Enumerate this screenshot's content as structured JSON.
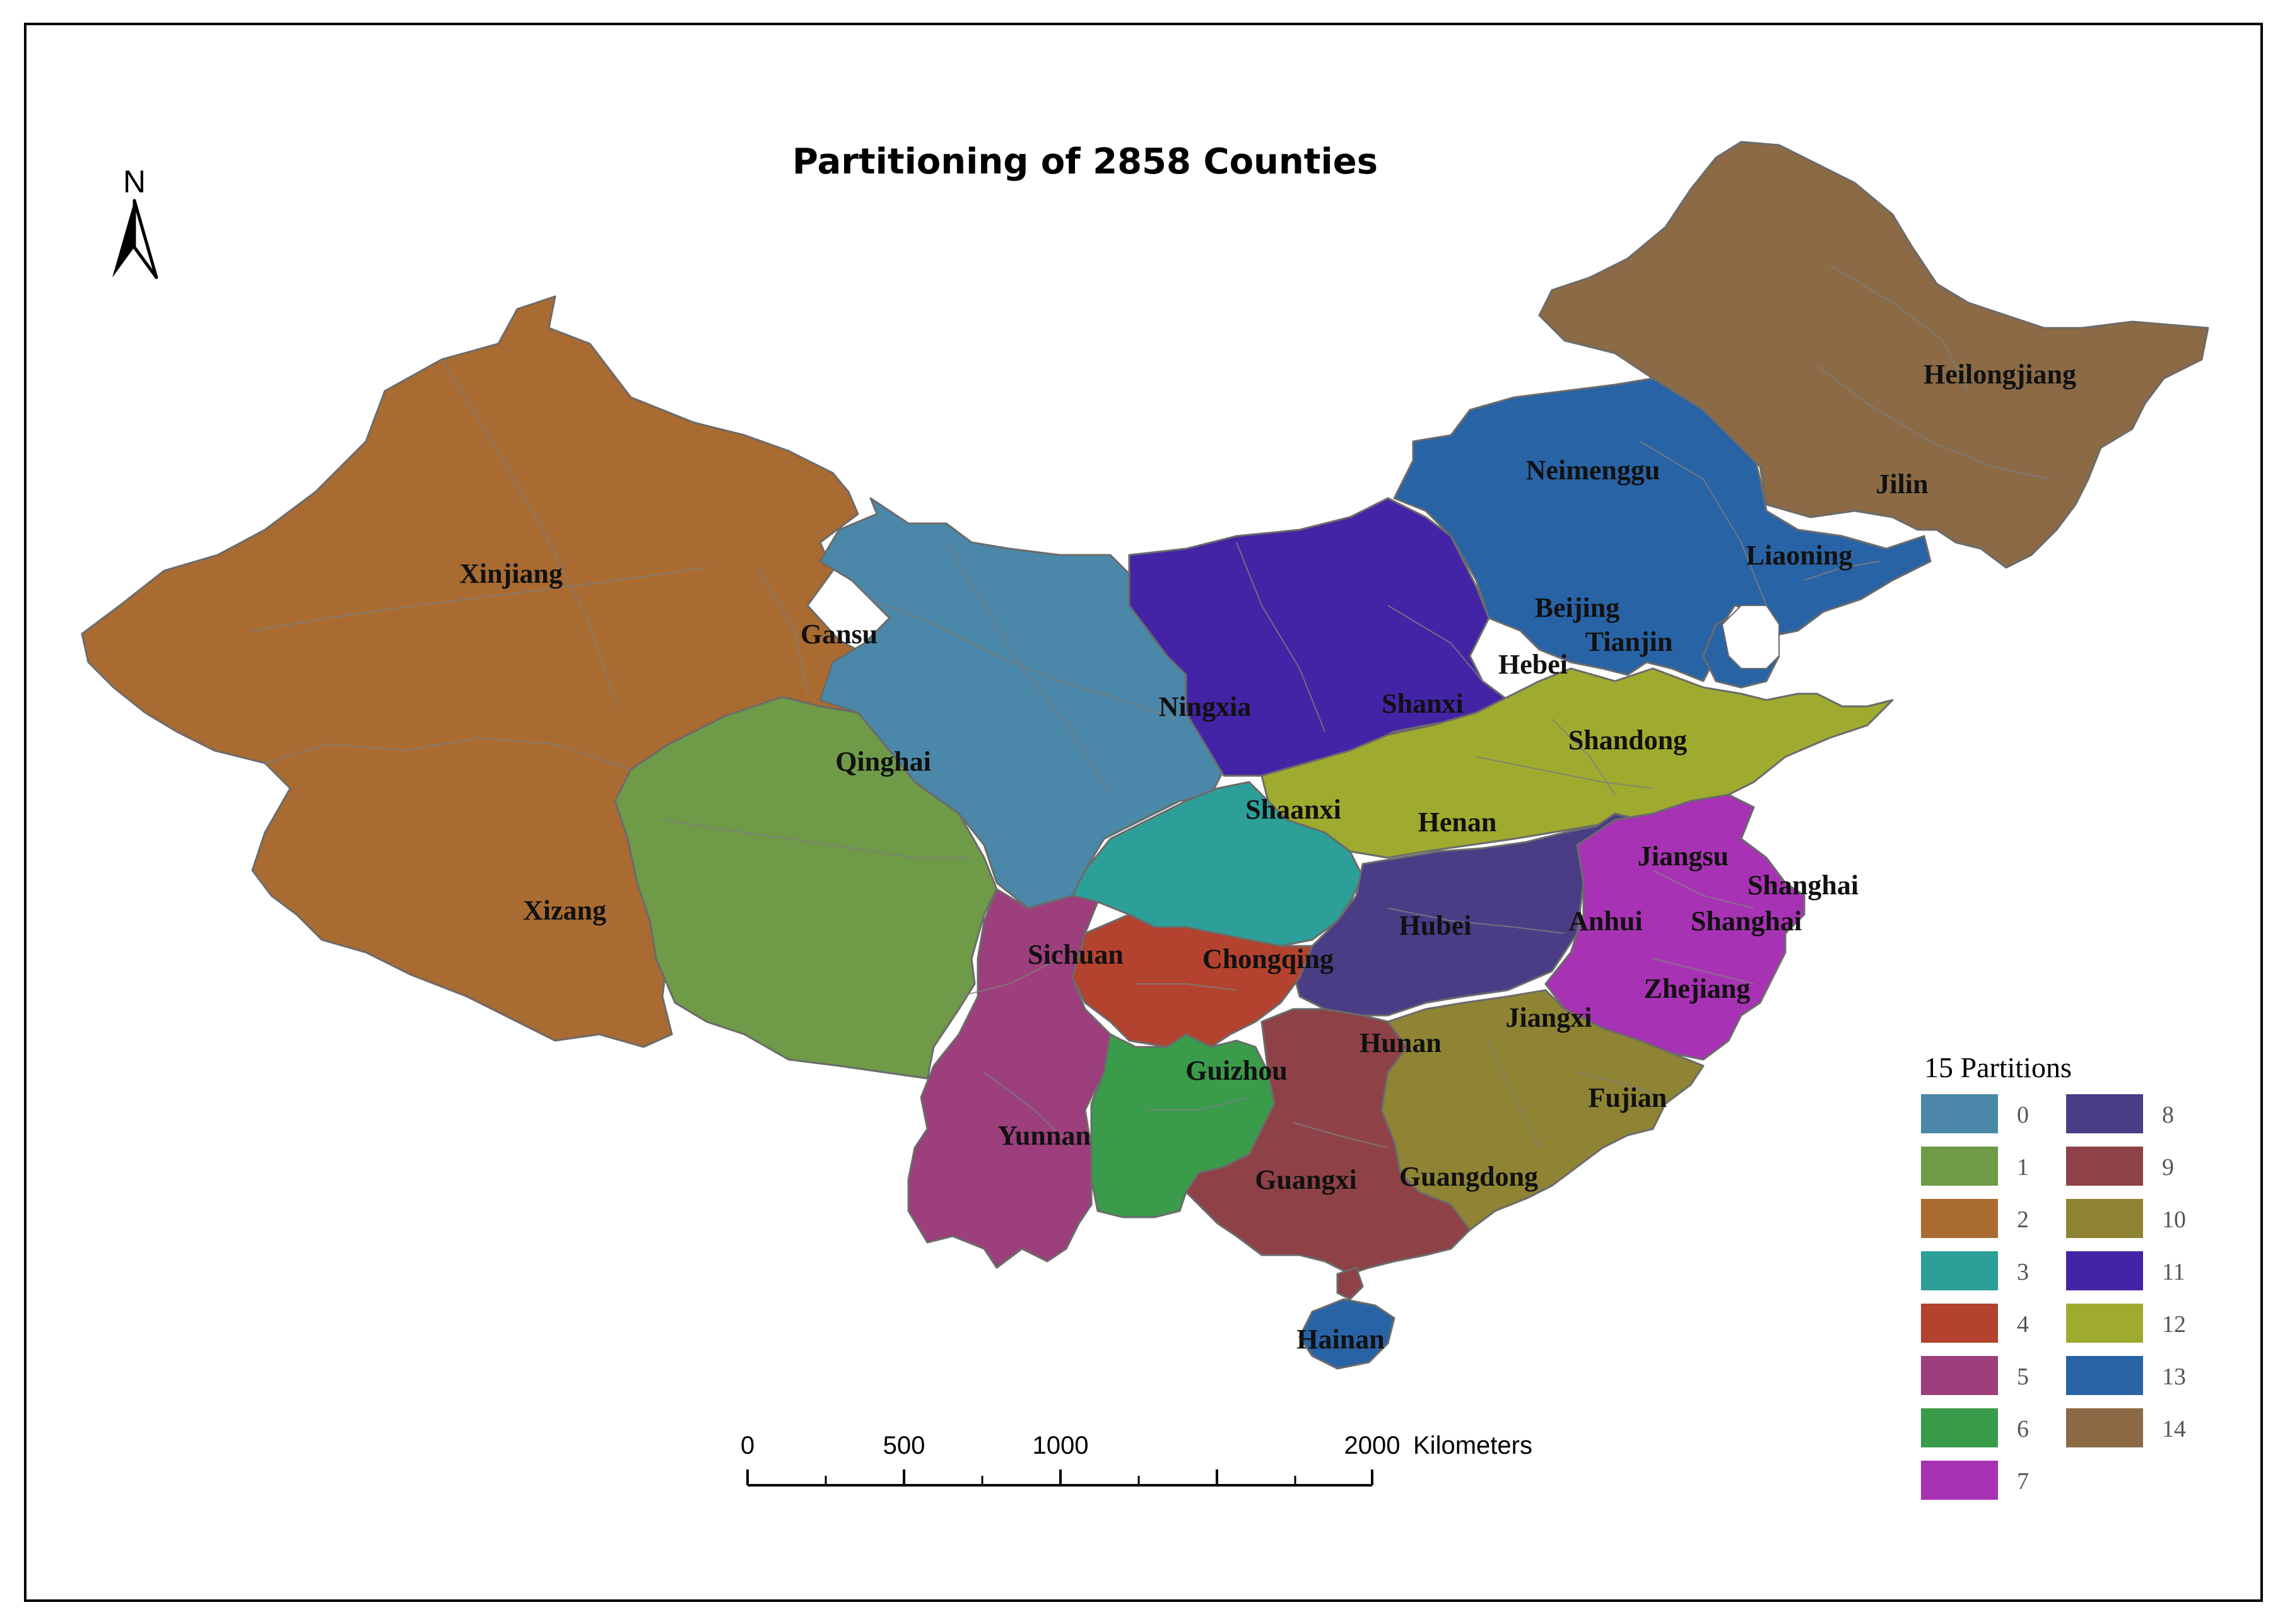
{
  "title": "Partitioning of 2858 Counties",
  "north_arrow": {
    "label": "N",
    "icon": "north-arrow-icon"
  },
  "provinces": {
    "xinjiang": "Xinjiang",
    "xizang": "Xizang",
    "qinghai": "Qinghai",
    "gansu": "Gansu",
    "sichuan": "Sichuan",
    "yunnan": "Yunnan",
    "guizhou": "Guizhou",
    "chongqing": "Chongqing",
    "ningxia": "Ningxia",
    "shaanxi": "Shaanxi",
    "shanxi": "Shanxi",
    "neimenggu": "Neimenggu",
    "heilongjiang": "Heilongjiang",
    "jilin": "Jilin",
    "liaoning": "Liaoning",
    "beijing": "Beijing",
    "tianjin": "Tianjin",
    "hebei": "Hebei",
    "shandong": "Shandong",
    "henan": "Henan",
    "hubei": "Hubei",
    "hunan": "Hunan",
    "anhui": "Anhui",
    "jiangsu": "Jiangsu",
    "shanghai": "Shanghai",
    "shanghai_2": "Shanghai",
    "zhejiang": "Zhejiang",
    "jiangxi": "Jiangxi",
    "fujian": "Fujian",
    "guangdong": "Guangdong",
    "guangxi": "Guangxi",
    "hainan": "Hainan"
  },
  "legend": {
    "title": "15 Partitions",
    "items": [
      {
        "label": "0",
        "color": "#4b87a8"
      },
      {
        "label": "1",
        "color": "#6f9a48"
      },
      {
        "label": "2",
        "color": "#a96b32"
      },
      {
        "label": "3",
        "color": "#2c9f98"
      },
      {
        "label": "4",
        "color": "#b3432e"
      },
      {
        "label": "5",
        "color": "#9c3f7c"
      },
      {
        "label": "6",
        "color": "#3a9b4a"
      },
      {
        "label": "7",
        "color": "#a832b4"
      },
      {
        "label": "8",
        "color": "#4a3d86"
      },
      {
        "label": "9",
        "color": "#8e4247"
      },
      {
        "label": "10",
        "color": "#8f8434"
      },
      {
        "label": "11",
        "color": "#4324a6"
      },
      {
        "label": "12",
        "color": "#9fab2e"
      },
      {
        "label": "13",
        "color": "#2863a5"
      },
      {
        "label": "14",
        "color": "#8b6a45"
      }
    ]
  },
  "scale_bar": {
    "labels": [
      "0",
      "500",
      "1000",
      "2000"
    ],
    "unit": "Kilometers"
  }
}
